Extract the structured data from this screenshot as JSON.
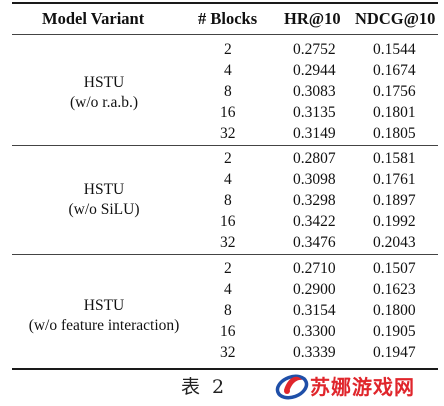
{
  "table": {
    "headers": {
      "variant": "Model Variant",
      "blocks": "# Blocks",
      "hr": "HR@10",
      "ndcg": "NDCG@10"
    },
    "groups": [
      {
        "name_line1": "HSTU",
        "name_line2": "(w/o r.a.b.)",
        "rows": [
          {
            "blocks": "2",
            "hr": "0.2752",
            "ndcg": "0.1544"
          },
          {
            "blocks": "4",
            "hr": "0.2944",
            "ndcg": "0.1674"
          },
          {
            "blocks": "8",
            "hr": "0.3083",
            "ndcg": "0.1756"
          },
          {
            "blocks": "16",
            "hr": "0.3135",
            "ndcg": "0.1801"
          },
          {
            "blocks": "32",
            "hr": "0.3149",
            "ndcg": "0.1805"
          }
        ]
      },
      {
        "name_line1": "HSTU",
        "name_line2": "(w/o SiLU)",
        "rows": [
          {
            "blocks": "2",
            "hr": "0.2807",
            "ndcg": "0.1581"
          },
          {
            "blocks": "4",
            "hr": "0.3098",
            "ndcg": "0.1761"
          },
          {
            "blocks": "8",
            "hr": "0.3298",
            "ndcg": "0.1897"
          },
          {
            "blocks": "16",
            "hr": "0.3422",
            "ndcg": "0.1992"
          },
          {
            "blocks": "32",
            "hr": "0.3476",
            "ndcg": "0.2043"
          }
        ]
      },
      {
        "name_line1": "HSTU",
        "name_line2": "(w/o feature interaction)",
        "rows": [
          {
            "blocks": "2",
            "hr": "0.2710",
            "ndcg": "0.1507"
          },
          {
            "blocks": "4",
            "hr": "0.2900",
            "ndcg": "0.1623"
          },
          {
            "blocks": "8",
            "hr": "0.3154",
            "ndcg": "0.1800"
          },
          {
            "blocks": "16",
            "hr": "0.3300",
            "ndcg": "0.1905"
          },
          {
            "blocks": "32",
            "hr": "0.3339",
            "ndcg": "0.1947"
          }
        ]
      }
    ]
  },
  "caption": "表 2",
  "watermark": {
    "text": "苏娜游戏网",
    "colors": {
      "red": "#e0262c",
      "blue": "#1f4fa8"
    }
  }
}
